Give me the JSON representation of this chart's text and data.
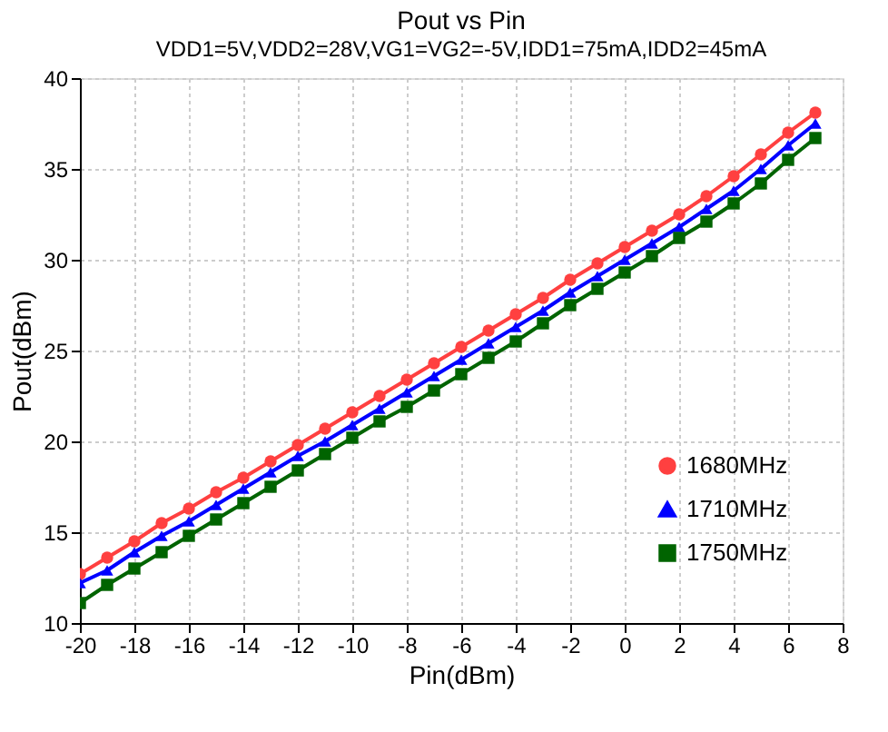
{
  "chart_data": {
    "type": "line",
    "title": "Pout vs Pin",
    "subtitle": "VDD1=5V,VDD2=28V,VG1=VG2=-5V,IDD1=75mA,IDD2=45mA",
    "xlabel": "Pin(dBm)",
    "ylabel": "Pout(dBm)",
    "x": [
      -20,
      -19,
      -18,
      -17,
      -16,
      -15,
      -14,
      -13,
      -12,
      -11,
      -10,
      -9,
      -8,
      -7,
      -6,
      -5,
      -4,
      -3,
      -2,
      -1,
      0,
      1,
      2,
      3,
      4,
      5,
      6,
      7
    ],
    "series": [
      {
        "name": "1680MHz",
        "color": "#ff4040",
        "marker": "circle",
        "values": [
          12.7,
          13.6,
          14.5,
          15.5,
          16.3,
          17.2,
          18.0,
          18.9,
          19.8,
          20.7,
          21.6,
          22.5,
          23.4,
          24.3,
          25.2,
          26.1,
          27.0,
          27.9,
          28.9,
          29.8,
          30.7,
          31.6,
          32.5,
          33.5,
          34.6,
          35.8,
          37.0,
          38.1
        ]
      },
      {
        "name": "1710MHz",
        "color": "#0000ff",
        "marker": "triangle",
        "values": [
          12.2,
          12.9,
          13.9,
          14.8,
          15.6,
          16.5,
          17.4,
          18.3,
          19.2,
          20.0,
          20.9,
          21.8,
          22.7,
          23.6,
          24.5,
          25.4,
          26.3,
          27.2,
          28.2,
          29.1,
          30.0,
          30.9,
          31.8,
          32.8,
          33.8,
          35.0,
          36.3,
          37.5
        ]
      },
      {
        "name": "1750MHz",
        "color": "#006400",
        "marker": "square",
        "values": [
          11.1,
          12.1,
          13.0,
          13.9,
          14.8,
          15.7,
          16.6,
          17.5,
          18.4,
          19.3,
          20.2,
          21.1,
          21.9,
          22.8,
          23.7,
          24.6,
          25.5,
          26.5,
          27.5,
          28.4,
          29.3,
          30.2,
          31.2,
          32.1,
          33.1,
          34.2,
          35.5,
          36.7
        ]
      }
    ],
    "xlim": [
      -20,
      8
    ],
    "xticks": [
      -20,
      -18,
      -16,
      -14,
      -12,
      -10,
      -8,
      -6,
      -4,
      -2,
      0,
      2,
      4,
      6,
      8
    ],
    "ylim": [
      10,
      40
    ],
    "yticks": [
      10,
      15,
      20,
      25,
      30,
      35,
      40
    ],
    "grid": true,
    "legend": "bottom right",
    "line_style": "solid"
  }
}
